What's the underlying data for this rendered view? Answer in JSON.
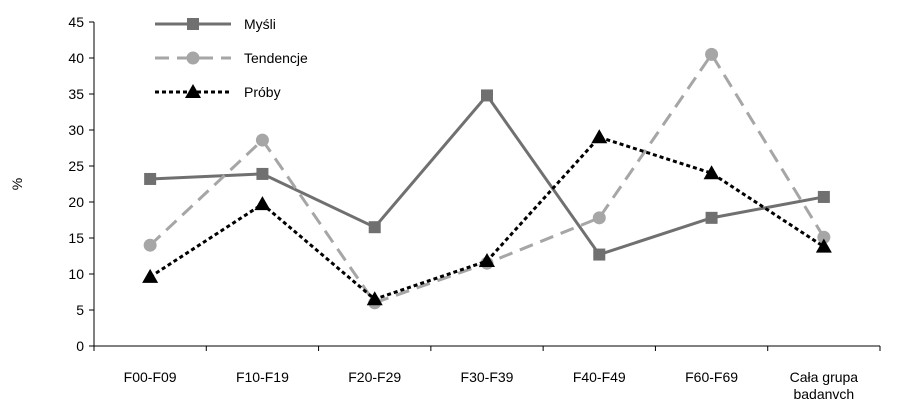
{
  "chart_data": {
    "type": "line",
    "title": "",
    "xlabel": "",
    "ylabel": "%",
    "ylim": [
      0,
      45
    ],
    "yticks": [
      "0",
      "5",
      "10",
      "15",
      "20",
      "25",
      "30",
      "35",
      "40",
      "45"
    ],
    "categories": [
      [
        "F00-F09"
      ],
      [
        "F10-F19"
      ],
      [
        "F20-F29"
      ],
      [
        "F30-F39"
      ],
      [
        "F40-F49"
      ],
      [
        "F60-F69"
      ],
      [
        "Cała grupa",
        "badanvch"
      ]
    ],
    "grid": false,
    "legend": "top-left",
    "series": [
      {
        "name": "Myśli",
        "values": [
          23.2,
          23.9,
          16.5,
          34.8,
          12.7,
          17.8,
          20.7
        ],
        "color": "#707070",
        "dash": "solid",
        "marker": "square"
      },
      {
        "name": "Tendencje",
        "values": [
          14.0,
          28.6,
          6.0,
          11.5,
          17.8,
          40.5,
          15.1
        ],
        "color": "#a6a6a6",
        "dash": "long-dash",
        "marker": "circle"
      },
      {
        "name": "Próby",
        "values": [
          9.6,
          19.7,
          6.5,
          11.8,
          29.0,
          24.0,
          13.8
        ],
        "color": "#000000",
        "dash": "dotted",
        "marker": "triangle"
      }
    ]
  }
}
